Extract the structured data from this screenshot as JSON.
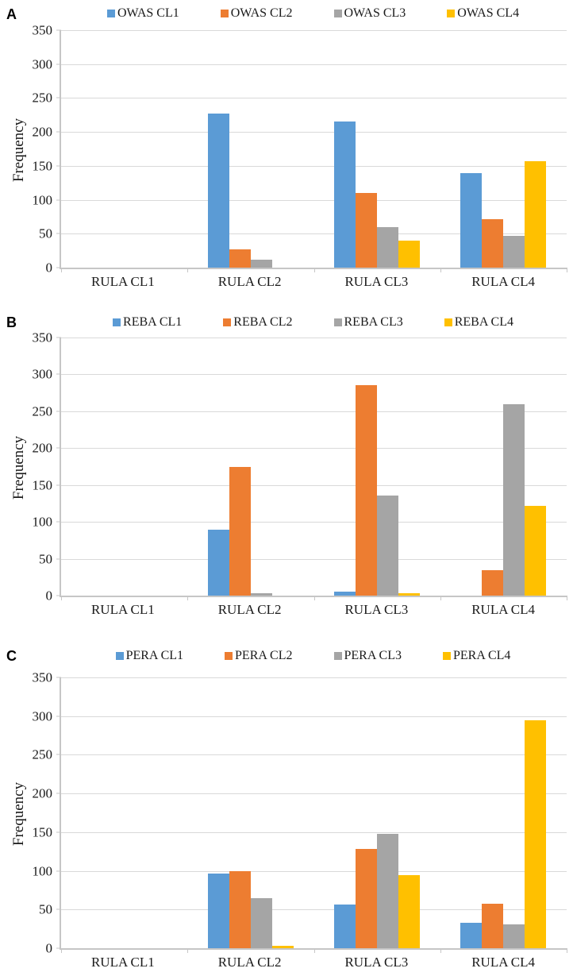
{
  "figure": {
    "panels": [
      {
        "label": "A",
        "ylabel": "Frequency",
        "chart_data": {
          "type": "bar",
          "title": "",
          "xlabel": "",
          "ylabel": "Frequency",
          "ylim": [
            0,
            350
          ],
          "ytick_step": 50,
          "grid": true,
          "legend_position": "top",
          "categories": [
            "RULA CL1",
            "RULA CL2",
            "RULA CL3",
            "RULA CL4"
          ],
          "series": [
            {
              "name": "OWAS CL1",
              "color": "#5B9BD5",
              "values": [
                0,
                227,
                215,
                139
              ]
            },
            {
              "name": "OWAS CL2",
              "color": "#ED7D31",
              "values": [
                0,
                27,
                110,
                72
              ]
            },
            {
              "name": "OWAS CL3",
              "color": "#A5A5A5",
              "values": [
                0,
                12,
                60,
                47
              ]
            },
            {
              "name": "OWAS CL4",
              "color": "#FFC000",
              "values": [
                0,
                0,
                40,
                157
              ]
            }
          ]
        }
      },
      {
        "label": "B",
        "ylabel": "Frequency",
        "chart_data": {
          "type": "bar",
          "title": "",
          "xlabel": "",
          "ylabel": "Frequency",
          "ylim": [
            0,
            350
          ],
          "ytick_step": 50,
          "grid": true,
          "legend_position": "top",
          "categories": [
            "RULA CL1",
            "RULA CL2",
            "RULA CL3",
            "RULA CL4"
          ],
          "series": [
            {
              "name": "REBA CL1",
              "color": "#5B9BD5",
              "values": [
                0,
                89,
                5,
                0
              ]
            },
            {
              "name": "REBA CL2",
              "color": "#ED7D31",
              "values": [
                0,
                174,
                285,
                35
              ]
            },
            {
              "name": "REBA CL3",
              "color": "#A5A5A5",
              "values": [
                0,
                3,
                136,
                260
              ]
            },
            {
              "name": "REBA CL4",
              "color": "#FFC000",
              "values": [
                0,
                0,
                3,
                122
              ]
            }
          ]
        }
      },
      {
        "label": "C",
        "ylabel": "Frequency",
        "chart_data": {
          "type": "bar",
          "title": "",
          "xlabel": "",
          "ylabel": "Frequency",
          "ylim": [
            0,
            350
          ],
          "ytick_step": 50,
          "grid": true,
          "legend_position": "top",
          "categories": [
            "RULA CL1",
            "RULA CL2",
            "RULA CL3",
            "RULA CL4"
          ],
          "series": [
            {
              "name": "PERA CL1",
              "color": "#5B9BD5",
              "values": [
                0,
                97,
                56,
                33
              ]
            },
            {
              "name": "PERA CL2",
              "color": "#ED7D31",
              "values": [
                0,
                100,
                128,
                57
              ]
            },
            {
              "name": "PERA CL3",
              "color": "#A5A5A5",
              "values": [
                0,
                65,
                148,
                31
              ]
            },
            {
              "name": "PERA CL4",
              "color": "#FFC000",
              "values": [
                0,
                3,
                94,
                295
              ]
            }
          ]
        }
      }
    ]
  }
}
